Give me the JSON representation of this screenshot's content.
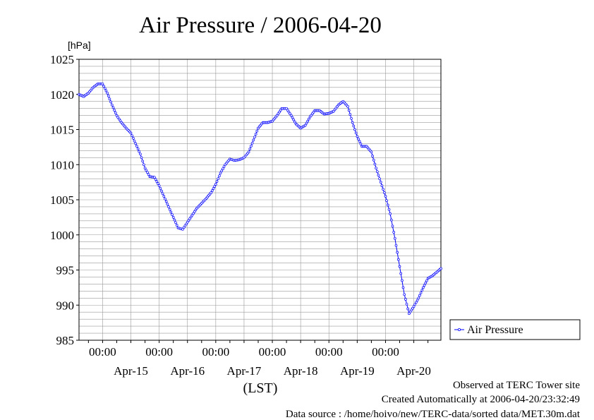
{
  "chart_data": {
    "type": "line",
    "title": "Air Pressure / 2006-04-20",
    "ylabel": "[hPa]",
    "xlabel": "(LST)",
    "ylim": [
      985,
      1025
    ],
    "y_ticks": [
      "985",
      "990",
      "995",
      "1000",
      "1005",
      "1010",
      "1015",
      "1020",
      "1025"
    ],
    "x_start": "2006-04-14 14:00",
    "x_end": "2006-04-20 23:30",
    "x_time_ticks": [
      {
        "time": "2006-04-15 00:00",
        "label": "00:00"
      },
      {
        "time": "2006-04-16 00:00",
        "label": "00:00"
      },
      {
        "time": "2006-04-17 00:00",
        "label": "00:00"
      },
      {
        "time": "2006-04-18 00:00",
        "label": "00:00"
      },
      {
        "time": "2006-04-19 00:00",
        "label": "00:00"
      },
      {
        "time": "2006-04-20 00:00",
        "label": "00:00"
      }
    ],
    "x_day_labels": [
      {
        "time": "2006-04-15 12:00",
        "label": "Apr-15"
      },
      {
        "time": "2006-04-16 12:00",
        "label": "Apr-16"
      },
      {
        "time": "2006-04-17 12:00",
        "label": "Apr-17"
      },
      {
        "time": "2006-04-18 12:00",
        "label": "Apr-18"
      },
      {
        "time": "2006-04-19 12:00",
        "label": "Apr-19"
      },
      {
        "time": "2006-04-20 12:00",
        "label": "Apr-20"
      }
    ],
    "grid": true,
    "legend_position": "right",
    "series": [
      {
        "name": "Air Pressure",
        "color": "#0000ff",
        "marker": "circle",
        "points": [
          [
            "2006-04-14 14:00",
            1020.0
          ],
          [
            "2006-04-14 16:00",
            1019.7
          ],
          [
            "2006-04-14 18:00",
            1020.2
          ],
          [
            "2006-04-14 20:00",
            1021.0
          ],
          [
            "2006-04-14 22:00",
            1021.5
          ],
          [
            "2006-04-15 00:00",
            1021.5
          ],
          [
            "2006-04-15 02:00",
            1020.2
          ],
          [
            "2006-04-15 04:00",
            1018.5
          ],
          [
            "2006-04-15 06:00",
            1017.0
          ],
          [
            "2006-04-15 08:00",
            1016.0
          ],
          [
            "2006-04-15 10:00",
            1015.2
          ],
          [
            "2006-04-15 12:00",
            1014.5
          ],
          [
            "2006-04-15 14:00",
            1013.0
          ],
          [
            "2006-04-15 16:00",
            1011.5
          ],
          [
            "2006-04-15 18:00",
            1009.5
          ],
          [
            "2006-04-15 20:00",
            1008.3
          ],
          [
            "2006-04-15 22:00",
            1008.2
          ],
          [
            "2006-04-16 00:00",
            1007.0
          ],
          [
            "2006-04-16 02:00",
            1005.5
          ],
          [
            "2006-04-16 04:00",
            1004.0
          ],
          [
            "2006-04-16 06:00",
            1002.5
          ],
          [
            "2006-04-16 08:00",
            1001.0
          ],
          [
            "2006-04-16 10:00",
            1000.8
          ],
          [
            "2006-04-16 12:00",
            1001.8
          ],
          [
            "2006-04-16 14:00",
            1002.8
          ],
          [
            "2006-04-16 16:00",
            1003.8
          ],
          [
            "2006-04-16 18:00",
            1004.5
          ],
          [
            "2006-04-16 20:00",
            1005.2
          ],
          [
            "2006-04-16 22:00",
            1006.0
          ],
          [
            "2006-04-17 00:00",
            1007.2
          ],
          [
            "2006-04-17 02:00",
            1008.8
          ],
          [
            "2006-04-17 04:00",
            1010.0
          ],
          [
            "2006-04-17 06:00",
            1010.8
          ],
          [
            "2006-04-17 08:00",
            1010.6
          ],
          [
            "2006-04-17 10:00",
            1010.7
          ],
          [
            "2006-04-17 12:00",
            1011.0
          ],
          [
            "2006-04-17 14:00",
            1011.8
          ],
          [
            "2006-04-17 16:00",
            1013.5
          ],
          [
            "2006-04-17 18:00",
            1015.2
          ],
          [
            "2006-04-17 20:00",
            1016.0
          ],
          [
            "2006-04-17 22:00",
            1016.0
          ],
          [
            "2006-04-18 00:00",
            1016.2
          ],
          [
            "2006-04-18 02:00",
            1017.0
          ],
          [
            "2006-04-18 04:00",
            1018.0
          ],
          [
            "2006-04-18 06:00",
            1018.0
          ],
          [
            "2006-04-18 08:00",
            1017.0
          ],
          [
            "2006-04-18 10:00",
            1015.8
          ],
          [
            "2006-04-18 12:00",
            1015.2
          ],
          [
            "2006-04-18 14:00",
            1015.6
          ],
          [
            "2006-04-18 16:00",
            1016.8
          ],
          [
            "2006-04-18 18:00",
            1017.7
          ],
          [
            "2006-04-18 20:00",
            1017.7
          ],
          [
            "2006-04-18 22:00",
            1017.2
          ],
          [
            "2006-04-19 00:00",
            1017.3
          ],
          [
            "2006-04-19 02:00",
            1017.6
          ],
          [
            "2006-04-19 04:00",
            1018.5
          ],
          [
            "2006-04-19 06:00",
            1019.0
          ],
          [
            "2006-04-19 08:00",
            1018.3
          ],
          [
            "2006-04-19 10:00",
            1016.0
          ],
          [
            "2006-04-19 12:00",
            1014.0
          ],
          [
            "2006-04-19 14:00",
            1012.6
          ],
          [
            "2006-04-19 16:00",
            1012.6
          ],
          [
            "2006-04-19 18:00",
            1011.8
          ],
          [
            "2006-04-19 20:00",
            1009.5
          ],
          [
            "2006-04-19 22:00",
            1007.5
          ],
          [
            "2006-04-20 00:00",
            1005.5
          ],
          [
            "2006-04-20 02:00",
            1003.0
          ],
          [
            "2006-04-20 04:00",
            999.5
          ],
          [
            "2006-04-20 06:00",
            995.5
          ],
          [
            "2006-04-20 08:00",
            991.5
          ],
          [
            "2006-04-20 10:00",
            988.8
          ],
          [
            "2006-04-20 12:00",
            989.8
          ],
          [
            "2006-04-20 14:00",
            991.0
          ],
          [
            "2006-04-20 16:00",
            992.5
          ],
          [
            "2006-04-20 18:00",
            993.8
          ],
          [
            "2006-04-20 20:00",
            994.2
          ],
          [
            "2006-04-20 23:30",
            995.2
          ]
        ]
      }
    ]
  },
  "footer": {
    "site": "Observed at TERC Tower site",
    "created": "Created Automatically at 2006-04-20/23:32:49",
    "source": "Data source : /home/hoivo/new/TERC-data/sorted  data/MET.30m.dat"
  }
}
